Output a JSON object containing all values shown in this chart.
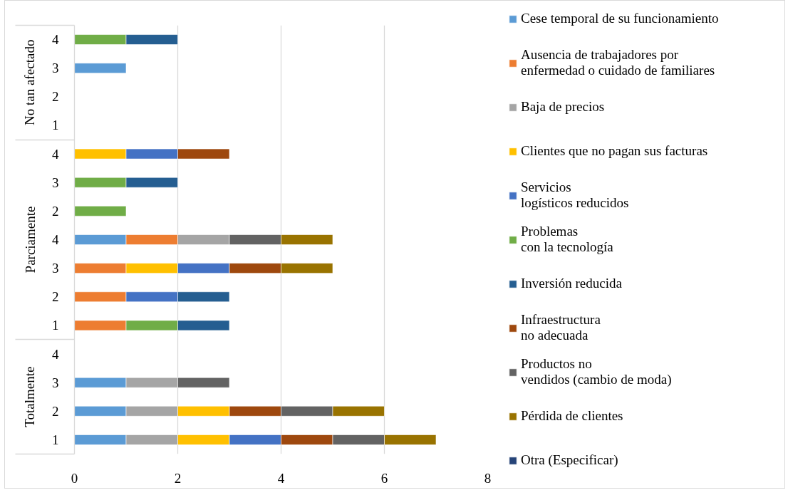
{
  "chart_data": {
    "type": "bar",
    "orientation": "horizontal",
    "stacked": true,
    "categories": [
      "4",
      "3",
      "2",
      "1",
      "4",
      "3",
      "2",
      "4",
      "3",
      "2",
      "1",
      "4",
      "3",
      "2",
      "1"
    ],
    "series": [
      {
        "name": "Cese temporal de su funcionamiento",
        "color": "#5b9bd5",
        "values": [
          null,
          1,
          null,
          null,
          null,
          null,
          null,
          1,
          null,
          null,
          null,
          null,
          1,
          1,
          1
        ]
      },
      {
        "name": "Ausencia de trabajadores por\nenfermedad o cuidado de familiares",
        "color": "#ed7d31",
        "values": [
          null,
          null,
          null,
          null,
          null,
          null,
          null,
          1,
          1,
          1,
          1,
          null,
          null,
          null,
          null
        ]
      },
      {
        "name": "Baja de precios",
        "color": "#a5a5a5",
        "values": [
          null,
          null,
          null,
          null,
          null,
          null,
          null,
          1,
          null,
          null,
          null,
          null,
          1,
          1,
          1
        ]
      },
      {
        "name": "Clientes que no pagan sus facturas",
        "color": "#ffc000",
        "values": [
          null,
          null,
          null,
          null,
          1,
          null,
          null,
          null,
          1,
          null,
          null,
          null,
          null,
          1,
          1
        ]
      },
      {
        "name": "Servicios\nlogísticos reducidos",
        "color": "#4472c4",
        "values": [
          null,
          null,
          null,
          null,
          1,
          null,
          null,
          null,
          1,
          1,
          null,
          null,
          null,
          null,
          1
        ]
      },
      {
        "name": "Problemas\ncon la tecnología",
        "color": "#70ad47",
        "values": [
          1,
          null,
          null,
          null,
          null,
          1,
          1,
          null,
          null,
          null,
          1,
          null,
          null,
          null,
          null
        ]
      },
      {
        "name": "Inversión reducida",
        "color": "#255e91",
        "values": [
          1,
          null,
          null,
          null,
          null,
          1,
          null,
          null,
          null,
          1,
          1,
          null,
          null,
          null,
          null
        ]
      },
      {
        "name": "Infraestructura\nno adecuada",
        "color": "#9e480e",
        "values": [
          null,
          null,
          null,
          null,
          1,
          null,
          null,
          null,
          1,
          null,
          null,
          null,
          null,
          1,
          1
        ]
      },
      {
        "name": "Productos no\nvendidos (cambio de moda)",
        "color": "#636363",
        "values": [
          null,
          null,
          null,
          null,
          null,
          null,
          null,
          1,
          null,
          null,
          null,
          null,
          1,
          1,
          1
        ]
      },
      {
        "name": "Pérdida de clientes",
        "color": "#997300",
        "values": [
          null,
          null,
          null,
          null,
          null,
          null,
          null,
          1,
          1,
          null,
          null,
          null,
          null,
          1,
          1
        ]
      },
      {
        "name": "Otra (Especificar)",
        "color": "#264478",
        "values": [
          null,
          null,
          null,
          null,
          null,
          null,
          null,
          null,
          null,
          null,
          null,
          null,
          null,
          null,
          null
        ]
      }
    ],
    "xlim": [
      0,
      8
    ],
    "xticks": [
      0,
      2,
      4,
      6,
      8
    ],
    "grid": "x",
    "legend": "right",
    "annotations": [
      "No tan afectado",
      "Parciamente",
      "Totalmente"
    ]
  }
}
